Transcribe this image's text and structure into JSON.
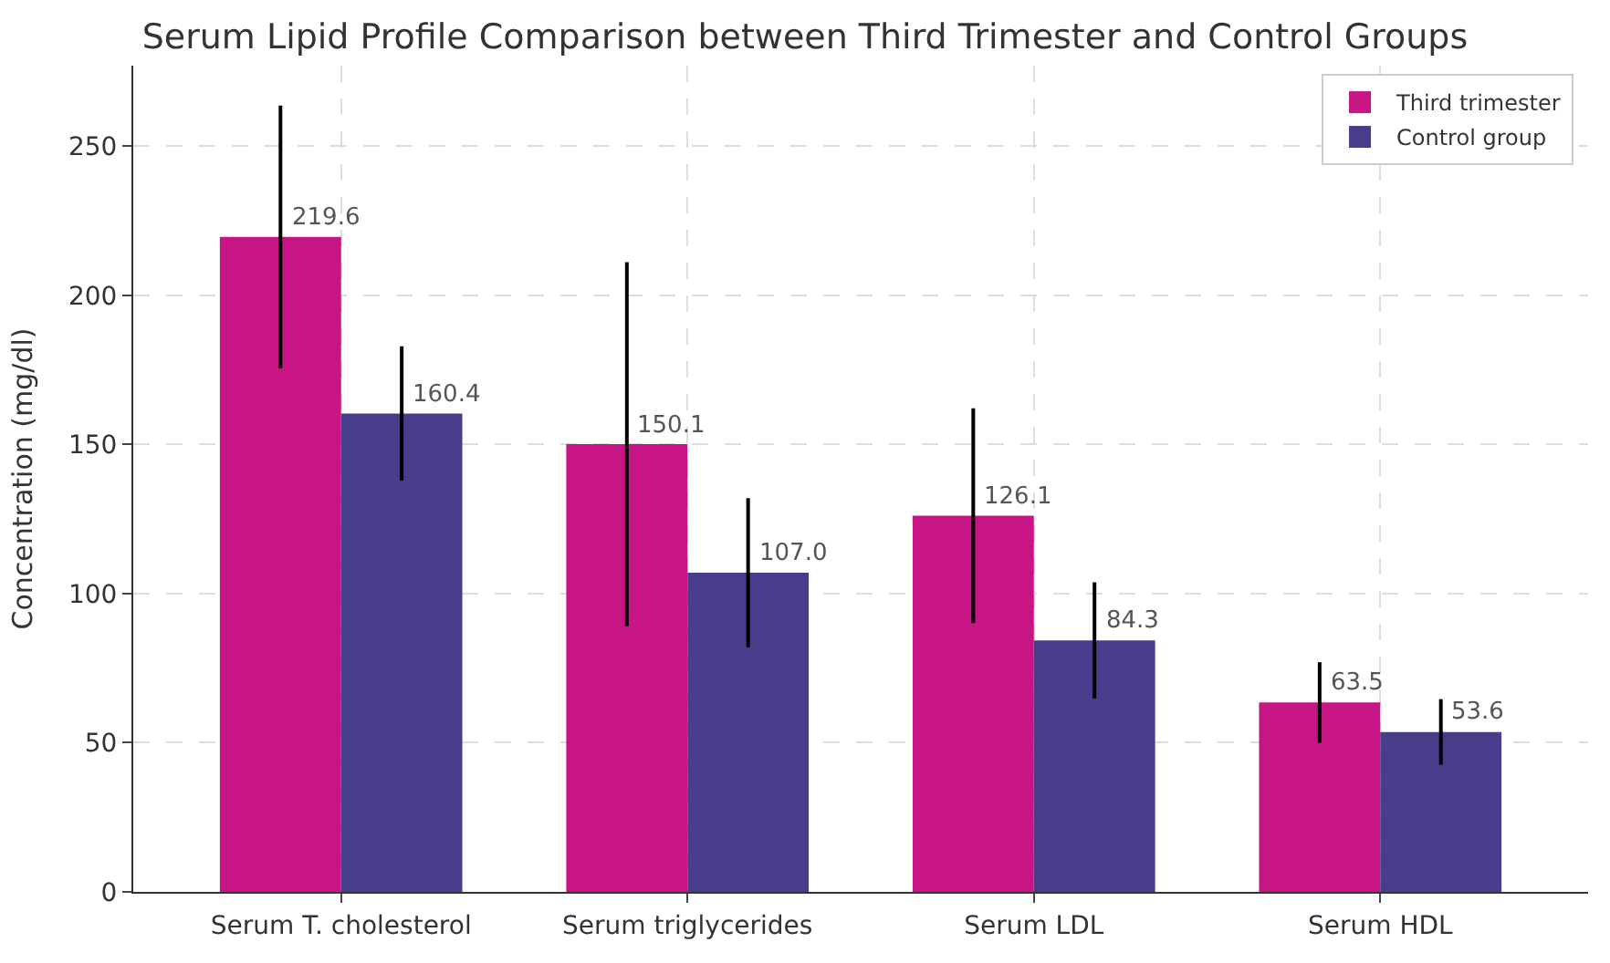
{
  "chart_data": {
    "type": "bar",
    "title": "Serum Lipid Profile Comparison between Third Trimester and Control Groups",
    "ylabel": "Concentration (mg/dl)",
    "categories": [
      "Serum T. cholesterol",
      "Serum triglycerides",
      "Serum LDL",
      "Serum HDL"
    ],
    "series": [
      {
        "name": "Third trimester",
        "color": "#c71585",
        "values": [
          219.6,
          150.1,
          126.1,
          63.5
        ],
        "value_labels": [
          "219.6",
          "150.1",
          "126.1",
          "63.5"
        ],
        "errors": [
          44,
          61,
          36,
          13.5
        ]
      },
      {
        "name": "Control group",
        "color": "#483d8b",
        "values": [
          160.4,
          107.0,
          84.3,
          53.6
        ],
        "value_labels": [
          "160.4",
          "107.0",
          "84.3",
          "53.6"
        ],
        "errors": [
          22.5,
          25,
          19.5,
          11
        ]
      }
    ],
    "ylim": [
      0,
      277
    ],
    "yticks": [
      0,
      50,
      100,
      150,
      200,
      250
    ],
    "grid": true,
    "legend": "top right"
  }
}
